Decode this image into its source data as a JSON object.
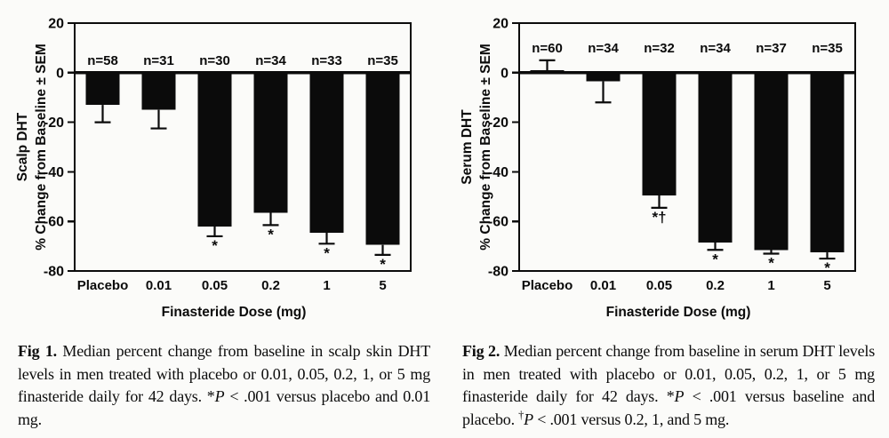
{
  "background_color": "#fbfbf9",
  "ink_color": "#0b0b0b",
  "chart_data": [
    {
      "type": "bar",
      "title": "",
      "ylabel": [
        "Scalp DHT",
        "% Change from Baseline ± SEM"
      ],
      "xlabel": "Finasteride Dose (mg)",
      "categories": [
        "Placebo",
        "0.01",
        "0.05",
        "0.2",
        "1",
        "5"
      ],
      "values": [
        -13,
        -15,
        -62,
        -56.5,
        -64.5,
        -69.5
      ],
      "sem": [
        7,
        7.5,
        4,
        5,
        4.5,
        4
      ],
      "n_labels": [
        "n=58",
        "n=31",
        "n=30",
        "n=34",
        "n=33",
        "n=35"
      ],
      "sig_markers": [
        "",
        "",
        "*",
        "*",
        "*",
        "*"
      ],
      "ylim": [
        -80,
        20
      ],
      "yticks": [
        20,
        0,
        -20,
        -40,
        -60,
        -80
      ],
      "grid": false,
      "legend": false,
      "bar_color": "#0b0b0b"
    },
    {
      "type": "bar",
      "title": "",
      "ylabel": [
        "Serum DHT",
        "% Change from Baseline ± SEM"
      ],
      "xlabel": "Finasteride Dose (mg)",
      "categories": [
        "Placebo",
        "0.01",
        "0.05",
        "0.2",
        "1",
        "5"
      ],
      "values": [
        1,
        -3.5,
        -49.5,
        -68.5,
        -71.5,
        -72.5
      ],
      "sem": [
        4,
        8.5,
        5,
        3,
        1.5,
        2.5
      ],
      "n_labels": [
        "n=60",
        "n=34",
        "n=32",
        "n=34",
        "n=37",
        "n=35"
      ],
      "sig_markers": [
        "",
        "",
        "*†",
        "*",
        "*",
        "*"
      ],
      "ylim": [
        -80,
        20
      ],
      "yticks": [
        20,
        0,
        -20,
        -40,
        -60,
        -80
      ],
      "grid": false,
      "legend": false,
      "bar_color": "#0b0b0b"
    }
  ],
  "captions": [
    {
      "label": "Fig 1.",
      "segments": [
        {
          "text": " Median percent change from baseline in scalp skin DHT levels in men treated with placebo or 0.01, 0.05, 0.2, 1, or 5 mg finasteride daily for 42 days. *"
        },
        {
          "text": "P",
          "style": "italic"
        },
        {
          "text": " < .001 versus placebo and 0.01 mg."
        }
      ]
    },
    {
      "label": "Fig 2.",
      "segments": [
        {
          "text": " Median percent change from baseline in serum DHT levels in men treated with placebo or 0.01, 0.05, 0.2, 1, or 5 mg finasteride daily for 42 days. *"
        },
        {
          "text": "P",
          "style": "italic"
        },
        {
          "text": " < .001 versus baseline and placebo. "
        },
        {
          "text": "†",
          "style": "sup"
        },
        {
          "text": "P",
          "style": "italic"
        },
        {
          "text": " < .001 versus 0.2, 1, and 5 mg."
        }
      ]
    }
  ]
}
